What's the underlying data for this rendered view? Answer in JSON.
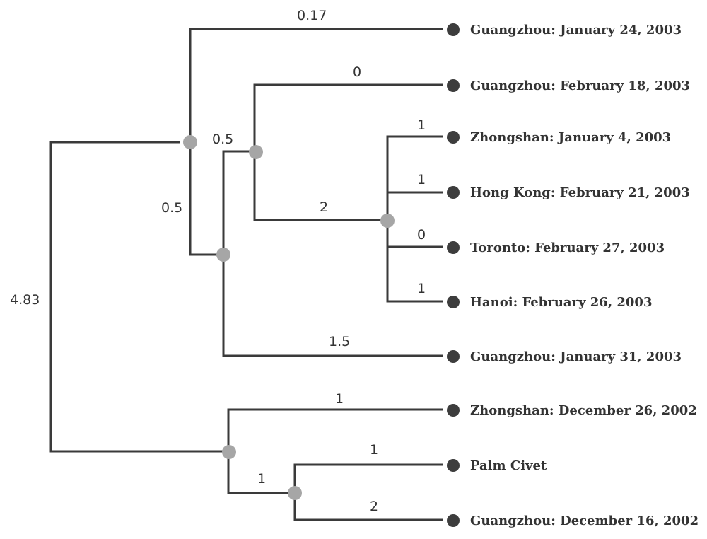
{
  "tree": {
    "leaves": [
      {
        "id": "L1",
        "label": "Guangzhou: January 24, 2003"
      },
      {
        "id": "L2",
        "label": "Guangzhou: February 18, 2003"
      },
      {
        "id": "L3",
        "label": "Zhongshan: January 4, 2003"
      },
      {
        "id": "L4",
        "label": "Hong Kong: February 21, 2003"
      },
      {
        "id": "L5",
        "label": "Toronto: February 27, 2003"
      },
      {
        "id": "L6",
        "label": "Hanoi: February 26, 2003"
      },
      {
        "id": "L7",
        "label": "Guangzhou: January 31, 2003"
      },
      {
        "id": "L8",
        "label": "Zhongshan: December 26, 2002"
      },
      {
        "id": "L9",
        "label": "Palm Civet"
      },
      {
        "id": "L10",
        "label": "Guangzhou: December 16, 2002"
      }
    ],
    "branch_lengths": {
      "root_to_upper": "4.83",
      "upper_to_L1": "0.17",
      "upper_to_inner": "0.5",
      "inner_to_clade": "0.5",
      "clade_to_L2": "0",
      "clade_to_poly": "2",
      "poly_to_L3": "1",
      "poly_to_L4": "1",
      "poly_to_L5": "0",
      "poly_to_L6": "1",
      "inner_to_L7": "1.5",
      "lower_to_L8": "1",
      "lower_to_sub": "1",
      "sub_to_L9": "1",
      "sub_to_L10": "2"
    }
  }
}
